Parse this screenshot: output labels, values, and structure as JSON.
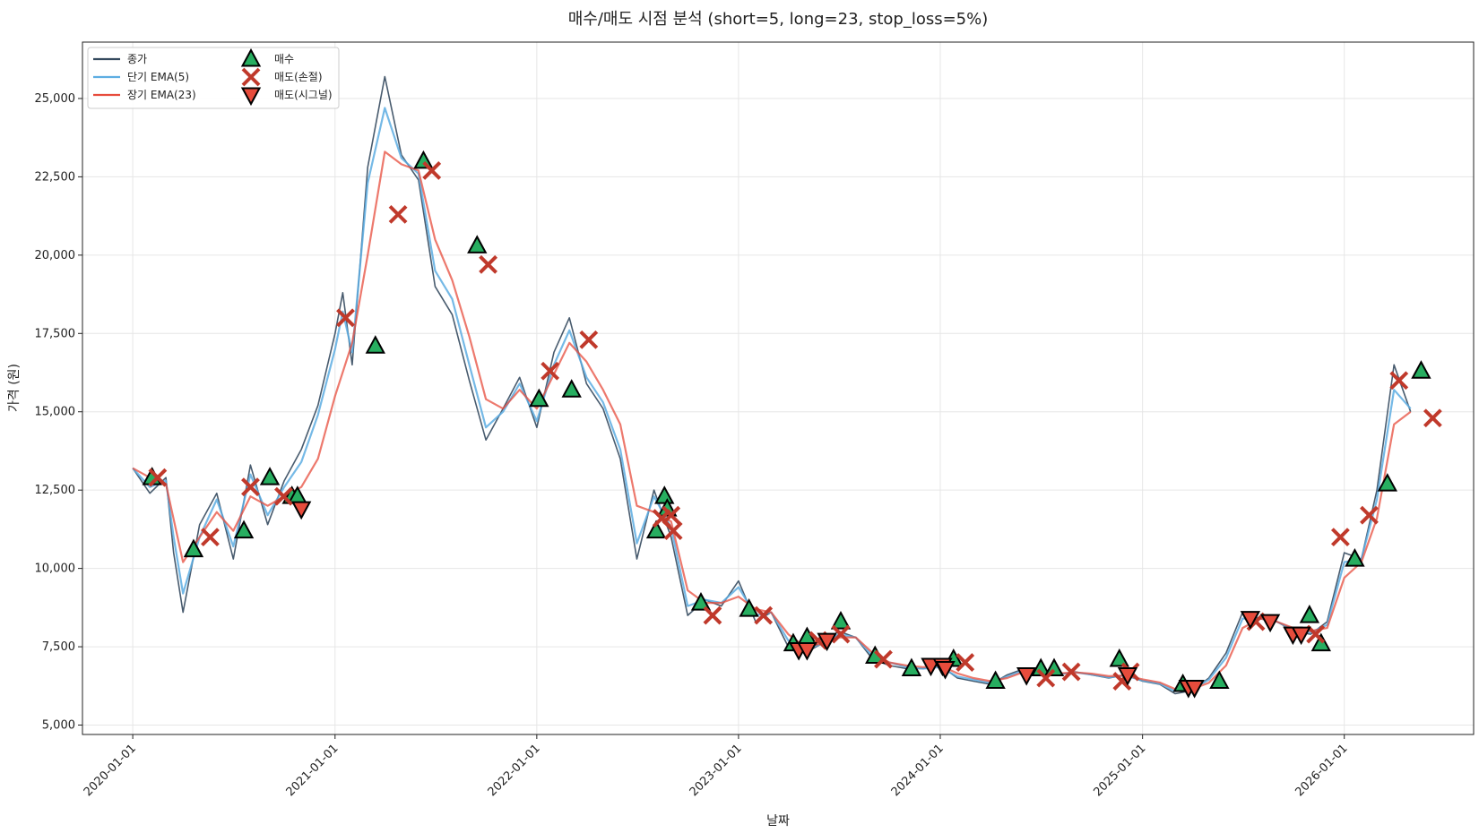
{
  "chart_data": {
    "type": "line",
    "title": "매수/매도 시점 분석 (short=5, long=23, stop_loss=5%)",
    "xlabel": "날짜",
    "ylabel": "가격 (원)",
    "xlim": [
      "2019-10-02",
      "2026-08-23"
    ],
    "ylim": [
      4700,
      26800
    ],
    "x_ticks": [
      "2020-01-01",
      "2021-01-01",
      "2022-01-01",
      "2023-01-01",
      "2024-01-01",
      "2025-01-01",
      "2026-01-01"
    ],
    "y_ticks": [
      5000,
      7500,
      10000,
      12500,
      15000,
      17500,
      20000,
      22500,
      25000
    ],
    "y_tick_labels": [
      "5,000",
      "7,500",
      "10,000",
      "12,500",
      "15,000",
      "17,500",
      "20,000",
      "22,500",
      "25,000"
    ],
    "grid": true,
    "legend_position": "top-left",
    "series": [
      {
        "name": "종가",
        "color": "#34495e",
        "x": [
          "2020-01-01",
          "2020-02-01",
          "2020-03-01",
          "2020-03-15",
          "2020-04-01",
          "2020-05-01",
          "2020-06-01",
          "2020-07-01",
          "2020-08-01",
          "2020-09-01",
          "2020-10-01",
          "2020-11-01",
          "2020-12-01",
          "2021-01-01",
          "2021-01-15",
          "2021-02-01",
          "2021-03-01",
          "2021-04-01",
          "2021-05-01",
          "2021-06-01",
          "2021-07-01",
          "2021-08-01",
          "2021-09-01",
          "2021-10-01",
          "2021-11-01",
          "2021-12-01",
          "2022-01-01",
          "2022-02-01",
          "2022-03-01",
          "2022-04-01",
          "2022-05-01",
          "2022-06-01",
          "2022-07-01",
          "2022-08-01",
          "2022-09-01",
          "2022-10-01",
          "2022-11-01",
          "2022-12-01",
          "2023-01-01",
          "2023-02-01",
          "2023-03-01",
          "2023-04-01",
          "2023-05-01",
          "2023-06-01",
          "2023-07-01",
          "2023-08-01",
          "2023-09-01",
          "2023-10-01",
          "2023-11-01",
          "2023-12-01",
          "2024-01-01",
          "2024-02-01",
          "2024-03-01",
          "2024-04-01",
          "2024-05-01",
          "2024-06-01",
          "2024-07-01",
          "2024-08-01",
          "2024-09-01",
          "2024-10-01",
          "2024-11-01",
          "2024-12-01",
          "2025-01-01",
          "2025-02-01",
          "2025-03-01",
          "2025-04-01",
          "2025-05-01",
          "2025-06-01",
          "2025-07-01",
          "2025-08-01",
          "2025-09-01",
          "2025-10-01",
          "2025-11-01",
          "2025-12-01",
          "2026-01-01",
          "2026-02-01",
          "2026-03-01",
          "2026-04-01",
          "2026-05-01"
        ],
        "y": [
          13200,
          12400,
          12900,
          10500,
          8600,
          11400,
          12400,
          10300,
          13300,
          11400,
          12800,
          13800,
          15200,
          17500,
          18800,
          16500,
          22800,
          25700,
          23200,
          22400,
          19000,
          18100,
          16000,
          14100,
          15100,
          16100,
          14500,
          16900,
          18000,
          15900,
          15100,
          13500,
          10300,
          12500,
          11000,
          8500,
          9000,
          8800,
          9600,
          8300,
          8600,
          7500,
          7300,
          7600,
          8000,
          7800,
          7100,
          6900,
          6800,
          6800,
          6900,
          6500,
          6400,
          6300,
          6600,
          6800,
          6700,
          6600,
          6700,
          6600,
          6500,
          6600,
          6400,
          6300,
          6000,
          6100,
          6500,
          7300,
          8600,
          8400,
          8300,
          8000,
          7900,
          8300,
          10500,
          10300,
          12500,
          16500,
          15000
        ],
        "mode": "line"
      },
      {
        "name": "단기 EMA(5)",
        "color": "#5dade2",
        "x": [
          "2020-01-01",
          "2020-02-01",
          "2020-03-01",
          "2020-03-15",
          "2020-04-01",
          "2020-05-01",
          "2020-06-01",
          "2020-07-01",
          "2020-08-01",
          "2020-09-01",
          "2020-10-01",
          "2020-11-01",
          "2020-12-01",
          "2021-01-01",
          "2021-01-15",
          "2021-02-01",
          "2021-03-01",
          "2021-04-01",
          "2021-05-01",
          "2021-06-01",
          "2021-07-01",
          "2021-08-01",
          "2021-09-01",
          "2021-10-01",
          "2021-11-01",
          "2021-12-01",
          "2022-01-01",
          "2022-02-01",
          "2022-03-01",
          "2022-04-01",
          "2022-05-01",
          "2022-06-01",
          "2022-07-01",
          "2022-08-01",
          "2022-09-01",
          "2022-10-01",
          "2022-11-01",
          "2022-12-01",
          "2023-01-01",
          "2023-02-01",
          "2023-03-01",
          "2023-04-01",
          "2023-05-01",
          "2023-06-01",
          "2023-07-01",
          "2023-08-01",
          "2023-09-01",
          "2023-10-01",
          "2023-11-01",
          "2023-12-01",
          "2024-01-01",
          "2024-02-01",
          "2024-03-01",
          "2024-04-01",
          "2024-05-01",
          "2024-06-01",
          "2024-07-01",
          "2024-08-01",
          "2024-09-01",
          "2024-10-01",
          "2024-11-01",
          "2024-12-01",
          "2025-01-01",
          "2025-02-01",
          "2025-03-01",
          "2025-04-01",
          "2025-05-01",
          "2025-06-01",
          "2025-07-01",
          "2025-08-01",
          "2025-09-01",
          "2025-10-01",
          "2025-11-01",
          "2025-12-01",
          "2026-01-01",
          "2026-02-01",
          "2026-03-01",
          "2026-04-01",
          "2026-05-01"
        ],
        "y": [
          13200,
          12600,
          12800,
          11000,
          9200,
          11000,
          12200,
          10700,
          13000,
          11700,
          12600,
          13400,
          14900,
          17000,
          18200,
          16900,
          22300,
          24700,
          23100,
          22600,
          19500,
          18600,
          16500,
          14500,
          15000,
          15900,
          14700,
          16500,
          17600,
          16100,
          15300,
          13800,
          10800,
          12300,
          11300,
          8800,
          9000,
          8900,
          9400,
          8500,
          8600,
          7700,
          7400,
          7600,
          7900,
          7800,
          7200,
          7000,
          6850,
          6800,
          6850,
          6550,
          6450,
          6350,
          6550,
          6750,
          6700,
          6620,
          6680,
          6610,
          6520,
          6580,
          6420,
          6320,
          6080,
          6150,
          6450,
          7150,
          8400,
          8400,
          8300,
          8050,
          7950,
          8200,
          10200,
          10300,
          12200,
          15700,
          15100
        ],
        "mode": "line"
      },
      {
        "name": "장기 EMA(23)",
        "color": "#e74c3c",
        "x": [
          "2020-01-01",
          "2020-02-01",
          "2020-03-01",
          "2020-04-01",
          "2020-05-01",
          "2020-06-01",
          "2020-07-01",
          "2020-08-01",
          "2020-09-01",
          "2020-10-01",
          "2020-11-01",
          "2020-12-01",
          "2021-01-01",
          "2021-02-01",
          "2021-03-01",
          "2021-04-01",
          "2021-05-01",
          "2021-06-01",
          "2021-07-01",
          "2021-08-01",
          "2021-09-01",
          "2021-10-01",
          "2021-11-01",
          "2021-12-01",
          "2022-01-01",
          "2022-02-01",
          "2022-03-01",
          "2022-04-01",
          "2022-05-01",
          "2022-06-01",
          "2022-07-01",
          "2022-08-01",
          "2022-09-01",
          "2022-10-01",
          "2022-11-01",
          "2022-12-01",
          "2023-01-01",
          "2023-02-01",
          "2023-03-01",
          "2023-04-01",
          "2023-05-01",
          "2023-06-01",
          "2023-07-01",
          "2023-08-01",
          "2023-09-01",
          "2023-10-01",
          "2023-11-01",
          "2023-12-01",
          "2024-01-01",
          "2024-02-01",
          "2024-03-01",
          "2024-04-01",
          "2024-05-01",
          "2024-06-01",
          "2024-07-01",
          "2024-08-01",
          "2024-09-01",
          "2024-10-01",
          "2024-11-01",
          "2024-12-01",
          "2025-01-01",
          "2025-02-01",
          "2025-03-01",
          "2025-04-01",
          "2025-05-01",
          "2025-06-01",
          "2025-07-01",
          "2025-08-01",
          "2025-09-01",
          "2025-10-01",
          "2025-11-01",
          "2025-12-01",
          "2026-01-01",
          "2026-02-01",
          "2026-03-01",
          "2026-04-01",
          "2026-05-01"
        ],
        "y": [
          13200,
          12900,
          12700,
          10200,
          11000,
          11800,
          11200,
          12300,
          12000,
          12300,
          12600,
          13500,
          15500,
          17200,
          20000,
          23300,
          22900,
          22700,
          20500,
          19200,
          17400,
          15400,
          15100,
          15700,
          15100,
          16200,
          17200,
          16600,
          15700,
          14600,
          12000,
          11800,
          11500,
          9300,
          8900,
          8900,
          9100,
          8700,
          8600,
          7900,
          7500,
          7600,
          7800,
          7800,
          7300,
          7000,
          6900,
          6850,
          6900,
          6650,
          6500,
          6400,
          6500,
          6700,
          6700,
          6650,
          6680,
          6640,
          6560,
          6580,
          6460,
          6360,
          6150,
          6150,
          6350,
          6900,
          8100,
          8400,
          8300,
          8100,
          8000,
          8100,
          9700,
          10200,
          11600,
          14600,
          15000
        ],
        "mode": "line"
      }
    ],
    "markers": [
      {
        "name": "매수",
        "shape": "triangle-up",
        "color": "#27ae60",
        "points": [
          {
            "x": "2020-02-05",
            "y": 12900
          },
          {
            "x": "2020-04-20",
            "y": 10600
          },
          {
            "x": "2020-07-20",
            "y": 11200
          },
          {
            "x": "2020-09-05",
            "y": 12900
          },
          {
            "x": "2020-10-15",
            "y": 12300
          },
          {
            "x": "2020-10-25",
            "y": 12300
          },
          {
            "x": "2021-03-15",
            "y": 17100
          },
          {
            "x": "2021-06-10",
            "y": 23000
          },
          {
            "x": "2021-09-15",
            "y": 20300
          },
          {
            "x": "2022-01-05",
            "y": 15400
          },
          {
            "x": "2022-03-05",
            "y": 15700
          },
          {
            "x": "2022-08-05",
            "y": 11200
          },
          {
            "x": "2022-08-20",
            "y": 12300
          },
          {
            "x": "2022-08-25",
            "y": 11900
          },
          {
            "x": "2022-10-25",
            "y": 8900
          },
          {
            "x": "2023-01-20",
            "y": 8700
          },
          {
            "x": "2023-04-10",
            "y": 7600
          },
          {
            "x": "2023-05-05",
            "y": 7800
          },
          {
            "x": "2023-07-05",
            "y": 8300
          },
          {
            "x": "2023-09-05",
            "y": 7200
          },
          {
            "x": "2023-11-10",
            "y": 6800
          },
          {
            "x": "2024-01-25",
            "y": 7100
          },
          {
            "x": "2024-04-10",
            "y": 6400
          },
          {
            "x": "2024-07-01",
            "y": 6800
          },
          {
            "x": "2024-07-25",
            "y": 6800
          },
          {
            "x": "2024-11-20",
            "y": 7100
          },
          {
            "x": "2025-03-15",
            "y": 6300
          },
          {
            "x": "2025-05-20",
            "y": 6400
          },
          {
            "x": "2025-10-30",
            "y": 8500
          },
          {
            "x": "2025-11-20",
            "y": 7600
          },
          {
            "x": "2026-01-20",
            "y": 10300
          },
          {
            "x": "2026-03-20",
            "y": 12700
          },
          {
            "x": "2026-05-20",
            "y": 16300
          }
        ]
      },
      {
        "name": "매도(손절)",
        "shape": "x",
        "color": "#c0392b",
        "points": [
          {
            "x": "2020-02-15",
            "y": 12900
          },
          {
            "x": "2020-05-20",
            "y": 11000
          },
          {
            "x": "2020-08-01",
            "y": 12600
          },
          {
            "x": "2020-09-30",
            "y": 12300
          },
          {
            "x": "2021-01-20",
            "y": 18000
          },
          {
            "x": "2021-04-25",
            "y": 21300
          },
          {
            "x": "2021-06-25",
            "y": 22700
          },
          {
            "x": "2021-10-05",
            "y": 19700
          },
          {
            "x": "2022-01-25",
            "y": 16300
          },
          {
            "x": "2022-04-05",
            "y": 17300
          },
          {
            "x": "2022-08-15",
            "y": 11600
          },
          {
            "x": "2022-09-01",
            "y": 11700
          },
          {
            "x": "2022-09-05",
            "y": 11200
          },
          {
            "x": "2022-11-15",
            "y": 8500
          },
          {
            "x": "2023-02-15",
            "y": 8500
          },
          {
            "x": "2023-05-25",
            "y": 7700
          },
          {
            "x": "2023-07-05",
            "y": 7900
          },
          {
            "x": "2023-09-20",
            "y": 7100
          },
          {
            "x": "2024-02-15",
            "y": 7000
          },
          {
            "x": "2024-07-10",
            "y": 6500
          },
          {
            "x": "2024-08-25",
            "y": 6700
          },
          {
            "x": "2024-11-25",
            "y": 6400
          },
          {
            "x": "2024-12-10",
            "y": 6700
          },
          {
            "x": "2025-07-25",
            "y": 8300
          },
          {
            "x": "2025-11-10",
            "y": 7900
          },
          {
            "x": "2025-12-25",
            "y": 11000
          },
          {
            "x": "2026-02-15",
            "y": 11700
          },
          {
            "x": "2026-04-10",
            "y": 16000
          },
          {
            "x": "2026-06-10",
            "y": 14800
          }
        ]
      },
      {
        "name": "매도(시그널)",
        "shape": "triangle-down",
        "color": "#e74c3c",
        "points": [
          {
            "x": "2020-11-01",
            "y": 11900
          },
          {
            "x": "2023-04-20",
            "y": 7400
          },
          {
            "x": "2023-05-05",
            "y": 7400
          },
          {
            "x": "2023-06-10",
            "y": 7700
          },
          {
            "x": "2023-12-15",
            "y": 6900
          },
          {
            "x": "2024-01-05",
            "y": 6900
          },
          {
            "x": "2024-01-10",
            "y": 6800
          },
          {
            "x": "2024-06-05",
            "y": 6600
          },
          {
            "x": "2024-12-05",
            "y": 6600
          },
          {
            "x": "2025-03-25",
            "y": 6200
          },
          {
            "x": "2025-04-05",
            "y": 6200
          },
          {
            "x": "2025-07-15",
            "y": 8400
          },
          {
            "x": "2025-08-20",
            "y": 8300
          },
          {
            "x": "2025-09-30",
            "y": 7900
          },
          {
            "x": "2025-10-15",
            "y": 7900
          }
        ]
      }
    ]
  }
}
